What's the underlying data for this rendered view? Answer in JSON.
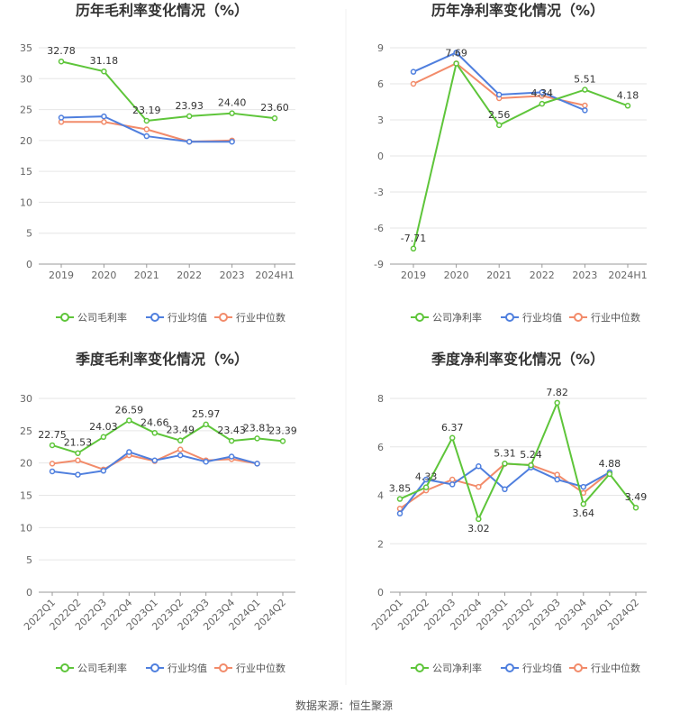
{
  "source": "数据来源：恒生聚源",
  "colors": {
    "company": "#5ec53a",
    "avg": "#4f7fde",
    "median": "#f28b6a"
  },
  "legend": {
    "avg": "行业均值",
    "median": "行业中位数"
  },
  "chart_data": [
    {
      "type": "line",
      "title": "历年毛利率变化情况（%）",
      "categories": [
        "2019",
        "2020",
        "2021",
        "2022",
        "2023",
        "2024H1"
      ],
      "ylim": [
        0,
        35
      ],
      "yticks": [
        0,
        5,
        10,
        15,
        20,
        25,
        30,
        35
      ],
      "rotate_x": false,
      "series": [
        {
          "key": "company",
          "name": "公司毛利率",
          "values": [
            32.78,
            31.18,
            23.19,
            23.93,
            24.4,
            23.6
          ],
          "labels": [
            "32.78",
            "31.18",
            "23.19",
            "23.93",
            "24.40",
            "23.60"
          ]
        },
        {
          "key": "avg",
          "name": "行业均值",
          "values": [
            23.7,
            23.9,
            20.7,
            19.8,
            19.8,
            null
          ]
        },
        {
          "key": "median",
          "name": "行业中位数",
          "values": [
            23.0,
            23.0,
            21.8,
            19.8,
            20.0,
            null
          ]
        }
      ]
    },
    {
      "type": "line",
      "title": "历年净利率变化情况（%）",
      "categories": [
        "2019",
        "2020",
        "2021",
        "2022",
        "2023",
        "2024H1"
      ],
      "ylim": [
        -9,
        9
      ],
      "yticks": [
        -9,
        -6,
        -3,
        0,
        3,
        6,
        9
      ],
      "rotate_x": false,
      "series": [
        {
          "key": "company",
          "name": "公司净利率",
          "values": [
            -7.71,
            7.69,
            2.56,
            4.34,
            5.51,
            4.18
          ],
          "labels": [
            "-7.71",
            "7.69",
            "2.56",
            "4.34",
            "5.51",
            "4.18"
          ]
        },
        {
          "key": "avg",
          "name": "行业均值",
          "values": [
            7.0,
            8.6,
            5.1,
            5.3,
            3.8,
            null
          ]
        },
        {
          "key": "median",
          "name": "行业中位数",
          "values": [
            6.0,
            7.7,
            4.8,
            5.0,
            4.2,
            null
          ]
        }
      ]
    },
    {
      "type": "line",
      "title": "季度毛利率变化情况（%）",
      "categories": [
        "2022Q1",
        "2022Q2",
        "2022Q3",
        "2022Q4",
        "2023Q1",
        "2023Q2",
        "2023Q3",
        "2023Q4",
        "2024Q1",
        "2024Q2"
      ],
      "ylim": [
        0,
        30
      ],
      "yticks": [
        0,
        5,
        10,
        15,
        20,
        25,
        30
      ],
      "rotate_x": true,
      "series": [
        {
          "key": "company",
          "name": "公司毛利率",
          "values": [
            22.75,
            21.53,
            24.03,
            26.59,
            24.66,
            23.49,
            25.97,
            23.43,
            23.81,
            23.39
          ],
          "labels": [
            "22.75",
            "21.53",
            "24.03",
            "26.59",
            "24.66",
            "23.49",
            "25.97",
            "23.43",
            "23.81",
            "23.39"
          ]
        },
        {
          "key": "avg",
          "name": "行业均值",
          "values": [
            18.7,
            18.2,
            18.8,
            21.7,
            20.4,
            21.2,
            20.2,
            21.0,
            19.9,
            null
          ]
        },
        {
          "key": "median",
          "name": "行业中位数",
          "values": [
            19.9,
            20.4,
            19.0,
            21.2,
            20.3,
            22.1,
            20.4,
            20.6,
            19.9,
            null
          ]
        }
      ]
    },
    {
      "type": "line",
      "title": "季度净利率变化情况（%）",
      "categories": [
        "2022Q1",
        "2022Q2",
        "2022Q3",
        "2022Q4",
        "2023Q1",
        "2023Q2",
        "2023Q3",
        "2023Q4",
        "2024Q1",
        "2024Q2"
      ],
      "ylim": [
        0,
        8
      ],
      "yticks": [
        0,
        2,
        4,
        6,
        8
      ],
      "rotate_x": true,
      "series": [
        {
          "key": "company",
          "name": "公司净利率",
          "values": [
            3.85,
            4.33,
            6.37,
            3.02,
            5.31,
            5.24,
            7.82,
            3.64,
            4.88,
            3.49
          ],
          "labels": [
            "3.85",
            "4.33",
            "6.37",
            "3.02",
            "5.31",
            "5.24",
            "7.82",
            "3.64",
            "4.88",
            "3.49"
          ]
        },
        {
          "key": "avg",
          "name": "行业均值",
          "values": [
            3.25,
            4.65,
            4.45,
            5.2,
            4.25,
            5.15,
            4.65,
            4.35,
            4.95,
            null
          ]
        },
        {
          "key": "median",
          "name": "行业中位数",
          "values": [
            3.45,
            4.2,
            4.65,
            4.35,
            5.3,
            5.25,
            4.85,
            4.1,
            4.95,
            null
          ]
        }
      ]
    }
  ]
}
